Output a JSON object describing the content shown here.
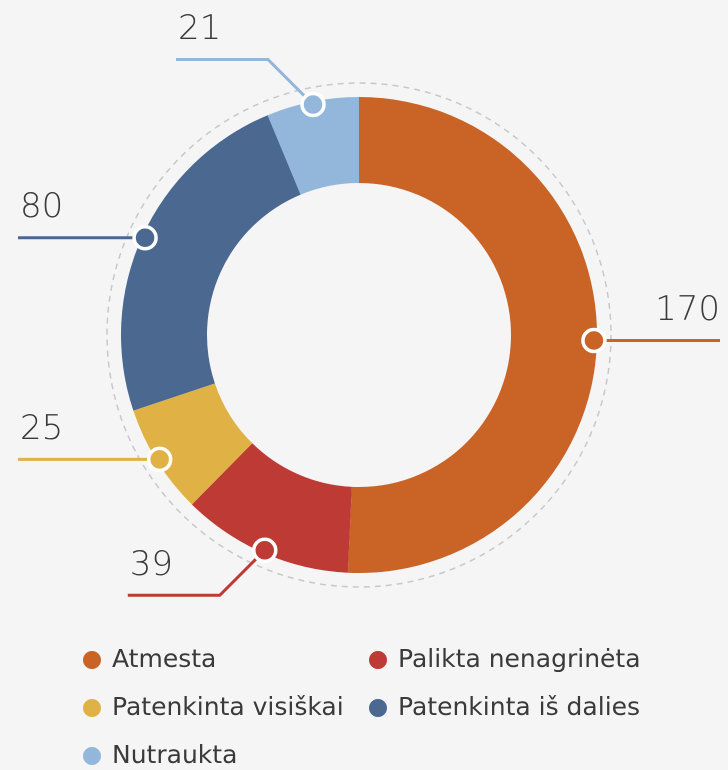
{
  "chart_data": {
    "type": "donut",
    "categories": [
      "Atmesta",
      "Palikta nenagrinėta",
      "Patenkinta visiškai",
      "Patenkinta iš dalies",
      "Nutraukta"
    ],
    "values": [
      170,
      39,
      25,
      80,
      21
    ],
    "colors": [
      "#c96426",
      "#be3a34",
      "#e0b245",
      "#4a6890",
      "#93b7da"
    ]
  }
}
